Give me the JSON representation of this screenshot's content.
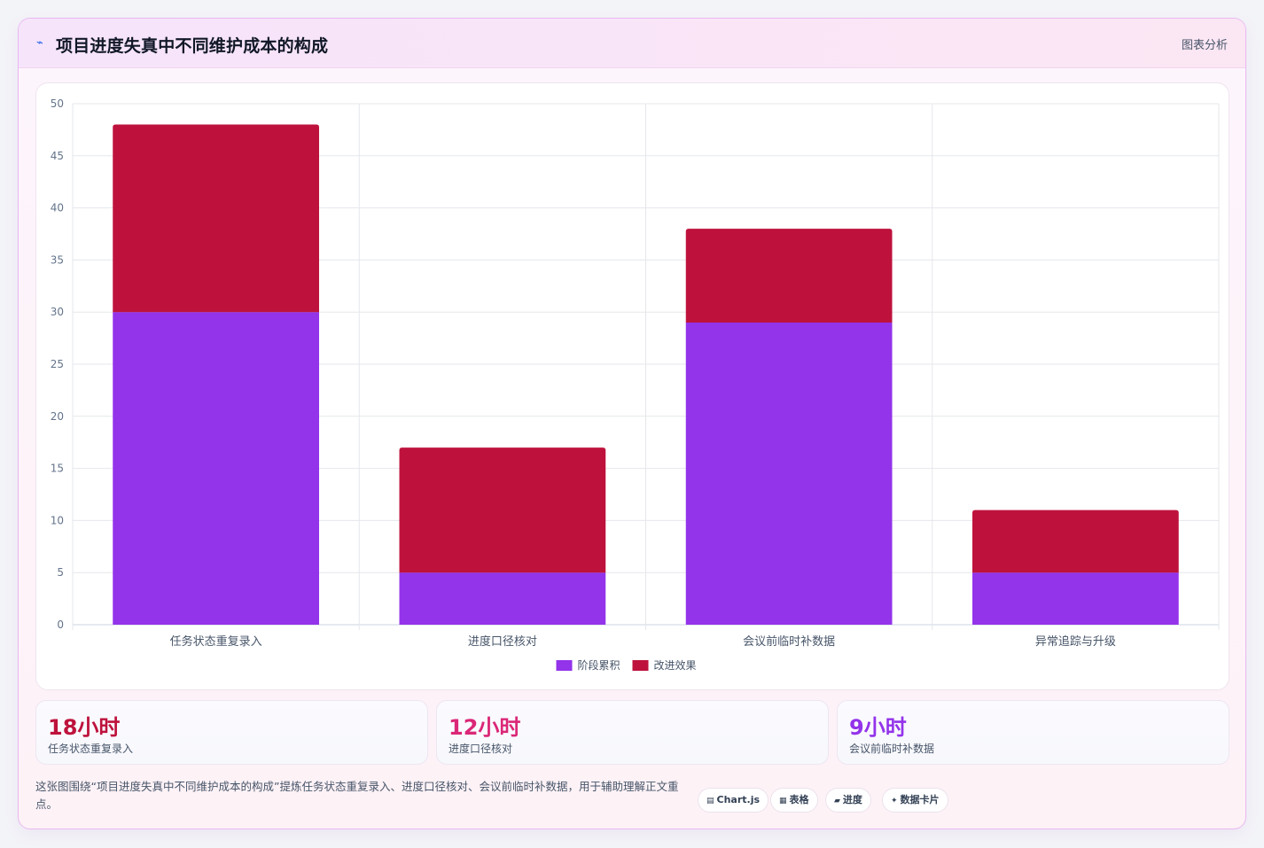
{
  "header": {
    "icon": "chart-line-icon",
    "title": "项目进度失真中不同维护成本的构成",
    "link": "图表分析"
  },
  "colors": {
    "series_1": "#9333ea",
    "series_2": "#be123c",
    "stat_1": "#be123c",
    "stat_2": "#db2777",
    "stat_3": "#9333ea"
  },
  "chart_data": {
    "type": "bar",
    "stacked": true,
    "categories": [
      "任务状态重复录入",
      "进度口径核对",
      "会议前临时补数据",
      "异常追踪与升级"
    ],
    "series": [
      {
        "name": "阶段累积",
        "values": [
          30,
          5,
          29,
          5
        ],
        "color": "#9333ea"
      },
      {
        "name": "改进效果",
        "values": [
          18,
          12,
          9,
          6
        ],
        "color": "#be123c"
      }
    ],
    "ylim": [
      0,
      50
    ],
    "yticks": [
      0,
      5,
      10,
      15,
      20,
      25,
      30,
      35,
      40,
      45,
      50
    ],
    "grid": true,
    "legend": "bottom"
  },
  "stats": [
    {
      "value": "18小时",
      "label": "任务状态重复录入"
    },
    {
      "value": "12小时",
      "label": "进度口径核对"
    },
    {
      "value": "9小时",
      "label": "会议前临时补数据"
    }
  ],
  "footnote": "这张图围绕“项目进度失真中不同维护成本的构成”提炼任务状态重复录入、进度口径核对、会议前临时补数据，用于辅助理解正文重点。",
  "tags": [
    {
      "icon": "chart-icon",
      "glyph": "▤",
      "label": "Chart.js"
    },
    {
      "icon": "table-icon",
      "glyph": "▦",
      "label": "表格"
    },
    {
      "icon": "progress-icon",
      "glyph": "▰",
      "label": "进度"
    },
    {
      "icon": "sparkle-icon",
      "glyph": "✦",
      "label": "数据卡片"
    }
  ]
}
